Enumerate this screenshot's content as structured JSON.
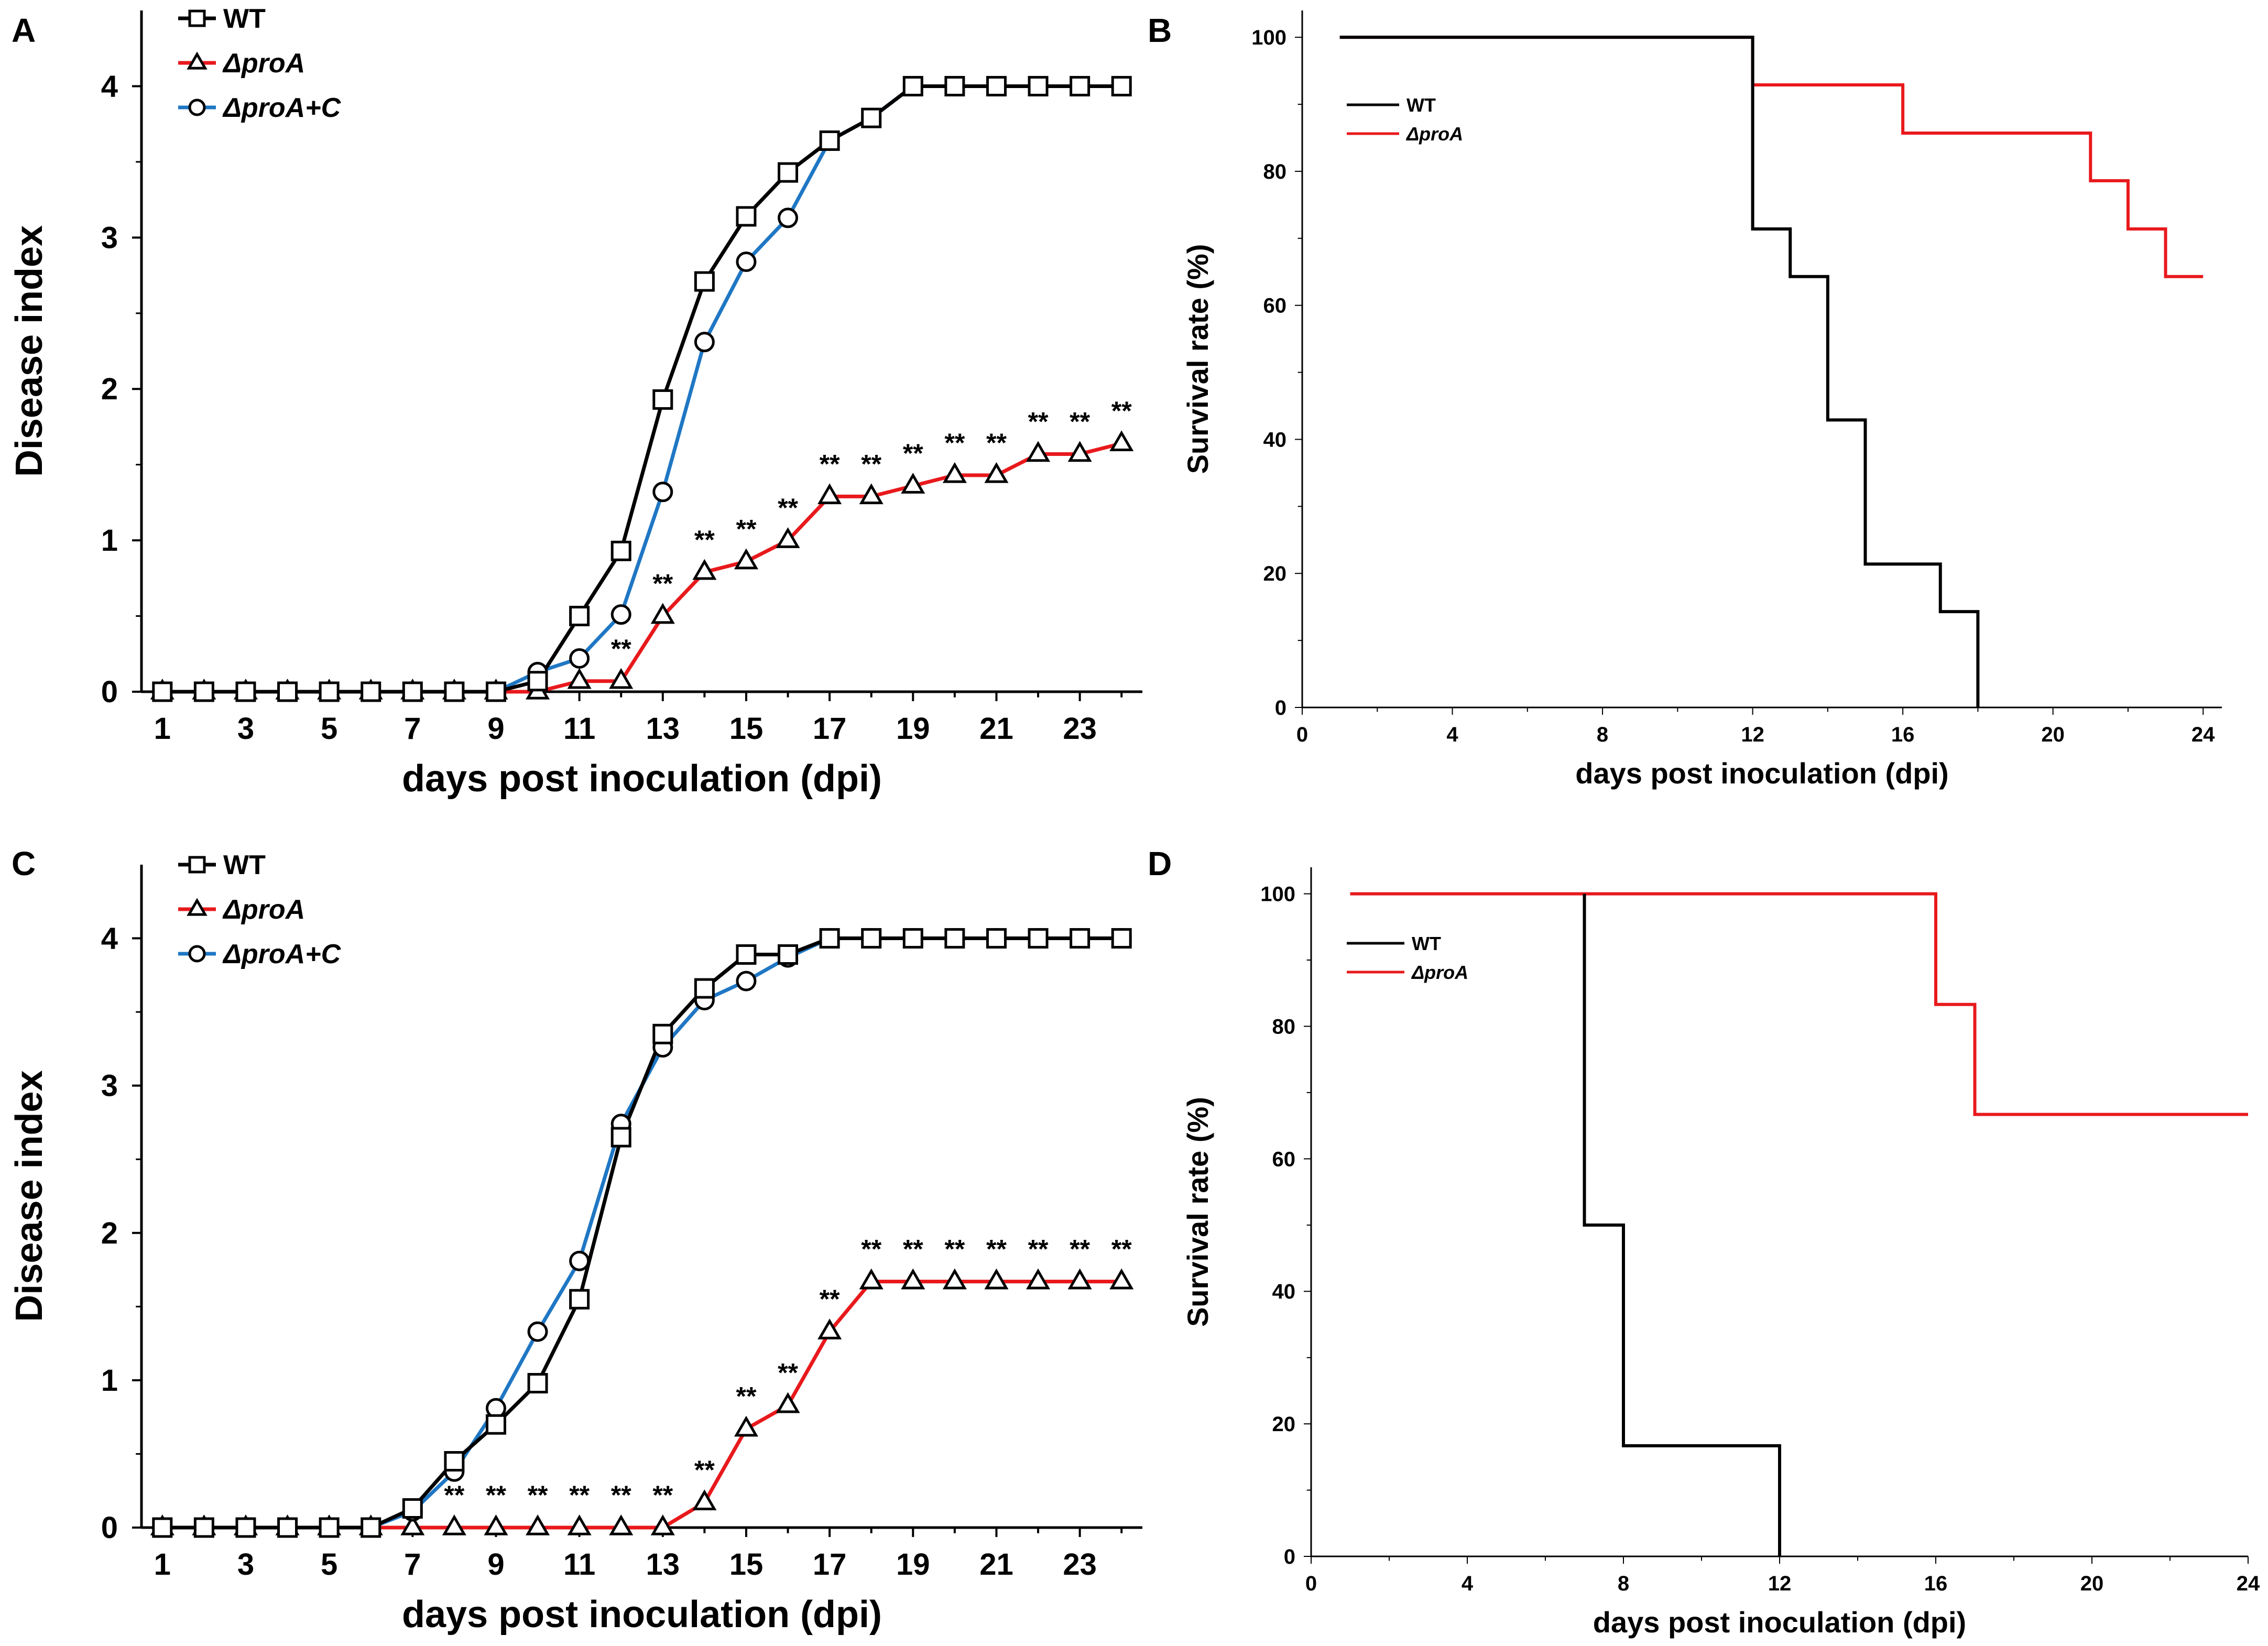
{
  "chart_data": [
    {
      "panel": "A",
      "type": "line",
      "xlabel": "days post inoculation (dpi)",
      "ylabel": "Disease index",
      "xlim": [
        0.5,
        24.5
      ],
      "ylim": [
        0,
        4.5
      ],
      "xticks": [
        1,
        3,
        5,
        7,
        9,
        11,
        13,
        15,
        17,
        19,
        21,
        23
      ],
      "yticks": [
        0,
        1,
        2,
        3,
        4
      ],
      "x": [
        1,
        2,
        3,
        4,
        5,
        6,
        7,
        8,
        9,
        10,
        11,
        12,
        13,
        14,
        15,
        16,
        17,
        18,
        19,
        20,
        21,
        22,
        23,
        24
      ],
      "series": [
        {
          "name": "WT",
          "marker": "square",
          "color": "#000000",
          "values": [
            0,
            0,
            0,
            0,
            0,
            0,
            0,
            0,
            0,
            0.07,
            0.5,
            0.93,
            1.93,
            2.71,
            3.14,
            3.43,
            3.64,
            3.79,
            4,
            4,
            4,
            4,
            4,
            4
          ]
        },
        {
          "name": "ΔproA",
          "marker": "triangle",
          "color": "#e8191c",
          "values": [
            0,
            0,
            0,
            0,
            0,
            0,
            0,
            0,
            0,
            0,
            0.07,
            0.07,
            0.5,
            0.79,
            0.86,
            1.0,
            1.29,
            1.29,
            1.36,
            1.43,
            1.43,
            1.57,
            1.57,
            1.64
          ]
        },
        {
          "name": "ΔproA+C",
          "marker": "circle",
          "color": "#1f77c4",
          "values": [
            0,
            0,
            0,
            0,
            0,
            0,
            0,
            0,
            0,
            0.13,
            0.22,
            0.51,
            1.32,
            2.31,
            2.84,
            3.13,
            3.64,
            3.79,
            4,
            4,
            4,
            4,
            4,
            4
          ]
        }
      ],
      "significance": {
        "label": "**",
        "x": [
          12,
          13,
          14,
          15,
          16,
          17,
          18,
          19,
          20,
          21,
          22,
          23,
          24
        ],
        "series": "ΔproA"
      }
    },
    {
      "panel": "B",
      "type": "line",
      "xlabel": "days post inoculation (dpi)",
      "ylabel": "Survival rate (%)",
      "xlim": [
        0,
        24.5
      ],
      "ylim": [
        0,
        104
      ],
      "xticks": [
        0,
        4,
        8,
        12,
        16,
        20,
        24
      ],
      "yticks": [
        0,
        20,
        40,
        60,
        80,
        100
      ],
      "series": [
        {
          "name": "WT",
          "color": "#000000",
          "steps": [
            [
              1,
              100
            ],
            [
              12,
              100
            ],
            [
              12,
              71.4
            ],
            [
              13,
              71.4
            ],
            [
              13,
              64.3
            ],
            [
              14,
              64.3
            ],
            [
              14,
              42.9
            ],
            [
              15,
              42.9
            ],
            [
              15,
              21.4
            ],
            [
              17,
              21.4
            ],
            [
              17,
              14.3
            ],
            [
              18,
              14.3
            ],
            [
              18,
              0
            ]
          ]
        },
        {
          "name": "ΔproA",
          "color": "#e8191c",
          "steps": [
            [
              1,
              100
            ],
            [
              12,
              100
            ],
            [
              12,
              92.9
            ],
            [
              16,
              92.9
            ],
            [
              16,
              85.7
            ],
            [
              21,
              85.7
            ],
            [
              21,
              78.6
            ],
            [
              22,
              78.6
            ],
            [
              22,
              71.4
            ],
            [
              23,
              71.4
            ],
            [
              23,
              64.3
            ],
            [
              24,
              64.3
            ]
          ]
        }
      ]
    },
    {
      "panel": "C",
      "type": "line",
      "xlabel": "days post inoculation (dpi)",
      "ylabel": "Disease index",
      "xlim": [
        0.5,
        24.5
      ],
      "ylim": [
        0,
        4.5
      ],
      "xticks": [
        1,
        3,
        5,
        7,
        9,
        11,
        13,
        15,
        17,
        19,
        21,
        23
      ],
      "yticks": [
        0,
        1,
        2,
        3,
        4
      ],
      "x": [
        1,
        2,
        3,
        4,
        5,
        6,
        7,
        8,
        9,
        10,
        11,
        12,
        13,
        14,
        15,
        16,
        17,
        18,
        19,
        20,
        21,
        22,
        23,
        24
      ],
      "series": [
        {
          "name": "WT",
          "marker": "square",
          "color": "#000000",
          "values": [
            0,
            0,
            0,
            0,
            0,
            0,
            0.13,
            0.45,
            0.7,
            0.98,
            1.55,
            2.65,
            3.35,
            3.66,
            3.89,
            3.89,
            4,
            4,
            4,
            4,
            4,
            4,
            4,
            4
          ]
        },
        {
          "name": "ΔproA",
          "marker": "triangle",
          "color": "#e8191c",
          "values": [
            0,
            0,
            0,
            0,
            0,
            0,
            0,
            0,
            0,
            0,
            0,
            0,
            0,
            0.17,
            0.67,
            0.83,
            1.33,
            1.67,
            1.67,
            1.67,
            1.67,
            1.67,
            1.67,
            1.67
          ]
        },
        {
          "name": "ΔproA+C",
          "marker": "circle",
          "color": "#1f77c4",
          "values": [
            0,
            0,
            0,
            0,
            0,
            0,
            0.11,
            0.38,
            0.81,
            1.33,
            1.81,
            2.74,
            3.26,
            3.58,
            3.71,
            3.87,
            4,
            4,
            4,
            4,
            4,
            4,
            4,
            4
          ]
        }
      ],
      "significance": {
        "label": "**",
        "x": [
          8,
          9,
          10,
          11,
          12,
          13,
          14,
          15,
          16,
          17,
          18,
          19,
          20,
          21,
          22,
          23,
          24
        ],
        "series": "ΔproA"
      }
    },
    {
      "panel": "D",
      "type": "line",
      "xlabel": "days post inoculation (dpi)",
      "ylabel": "Survival rate (%)",
      "xlim": [
        0,
        24
      ],
      "ylim": [
        0,
        104
      ],
      "xticks": [
        0,
        4,
        8,
        12,
        16,
        20,
        24
      ],
      "yticks": [
        0,
        20,
        40,
        60,
        80,
        100
      ],
      "series": [
        {
          "name": "WT",
          "color": "#000000",
          "steps": [
            [
              7,
              100
            ],
            [
              7,
              50
            ],
            [
              8,
              50
            ],
            [
              8,
              16.7
            ],
            [
              12,
              16.7
            ],
            [
              12,
              0
            ]
          ]
        },
        {
          "name": "ΔproA",
          "color": "#e8191c",
          "steps": [
            [
              1,
              100
            ],
            [
              16,
              100
            ],
            [
              16,
              83.3
            ],
            [
              17,
              83.3
            ],
            [
              17,
              66.7
            ],
            [
              24,
              66.7
            ]
          ]
        }
      ]
    }
  ]
}
